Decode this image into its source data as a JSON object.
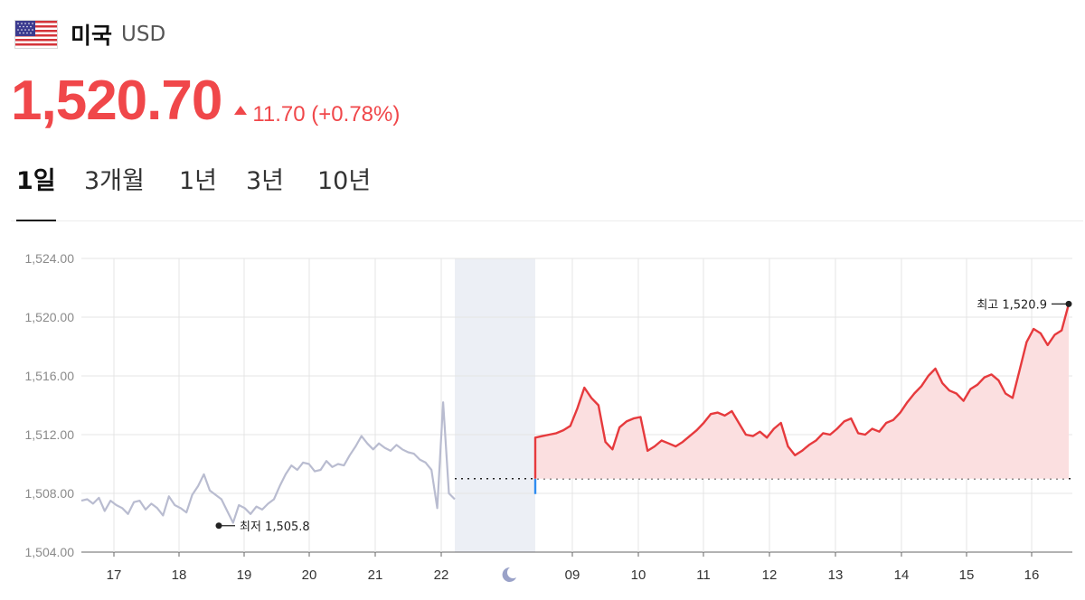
{
  "header": {
    "country": "미국",
    "currency": "USD",
    "flag_icon": "us-flag-icon"
  },
  "quote": {
    "price": "1,520.70",
    "change": "11.70 (+0.78%)",
    "direction": "up",
    "color": "#f0474a"
  },
  "tabs": [
    {
      "label": "1일",
      "active": true
    },
    {
      "label": "3개월",
      "active": false
    },
    {
      "label": "1년",
      "active": false
    },
    {
      "label": "3년",
      "active": false
    },
    {
      "label": "10년",
      "active": false
    }
  ],
  "chart_data": {
    "type": "line",
    "y_ticks": [
      "1,504.00",
      "1,508.00",
      "1,512.00",
      "1,516.00",
      "1,520.00",
      "1,524.00"
    ],
    "ylim": [
      1504,
      1524
    ],
    "x_ticks": [
      "17",
      "18",
      "19",
      "20",
      "21",
      "22",
      "09",
      "10",
      "11",
      "12",
      "13",
      "14",
      "15",
      "16"
    ],
    "night_icon": "moon-icon",
    "reference_level": 1509,
    "low": {
      "label": "최저 1,505.8",
      "value": 1505.8
    },
    "high": {
      "label": "최고 1,520.9",
      "value": 1520.9
    },
    "series": [
      {
        "role": "previous",
        "color": "#b9bcd0",
        "values": [
          1507.5,
          1507.6,
          1507.3,
          1507.7,
          1506.8,
          1507.5,
          1507.2,
          1507.0,
          1506.6,
          1507.4,
          1507.5,
          1506.9,
          1507.3,
          1507.0,
          1506.5,
          1507.8,
          1507.2,
          1507.0,
          1506.7,
          1507.9,
          1508.5,
          1509.3,
          1508.2,
          1507.9,
          1507.6,
          1506.8,
          1506.0,
          1507.2,
          1507.0,
          1506.6,
          1507.1,
          1506.9,
          1507.3,
          1507.6,
          1508.5,
          1509.3,
          1509.9,
          1509.6,
          1510.1,
          1510.0,
          1509.5,
          1509.6,
          1510.2,
          1509.8,
          1510.0,
          1509.9,
          1510.6,
          1511.2,
          1511.9,
          1511.4,
          1511.0,
          1511.4,
          1511.1,
          1510.9,
          1511.3,
          1511.0,
          1510.8,
          1510.7,
          1510.3,
          1510.1,
          1509.6,
          1507.0,
          1514.2,
          1508.0,
          1507.6
        ]
      },
      {
        "role": "today",
        "color": "#e63a3d",
        "fill": "#fbdfe0",
        "values": [
          1511.8,
          1511.9,
          1512.0,
          1512.1,
          1512.3,
          1512.6,
          1513.8,
          1515.2,
          1514.5,
          1514.0,
          1511.5,
          1511.0,
          1512.5,
          1512.9,
          1513.1,
          1513.2,
          1510.9,
          1511.2,
          1511.6,
          1511.4,
          1511.2,
          1511.5,
          1511.9,
          1512.3,
          1512.8,
          1513.4,
          1513.5,
          1513.3,
          1513.6,
          1512.8,
          1512.0,
          1511.9,
          1512.2,
          1511.8,
          1512.4,
          1512.8,
          1511.2,
          1510.6,
          1510.9,
          1511.3,
          1511.6,
          1512.1,
          1512.0,
          1512.4,
          1512.9,
          1513.1,
          1512.1,
          1512.0,
          1512.4,
          1512.2,
          1512.8,
          1513.0,
          1513.5,
          1514.2,
          1514.8,
          1515.3,
          1516.0,
          1516.5,
          1515.5,
          1515.0,
          1514.8,
          1514.3,
          1515.1,
          1515.4,
          1515.9,
          1516.1,
          1515.7,
          1514.8,
          1514.5,
          1516.4,
          1518.3,
          1519.2,
          1518.9,
          1518.1,
          1518.8,
          1519.1,
          1520.9
        ]
      }
    ]
  }
}
